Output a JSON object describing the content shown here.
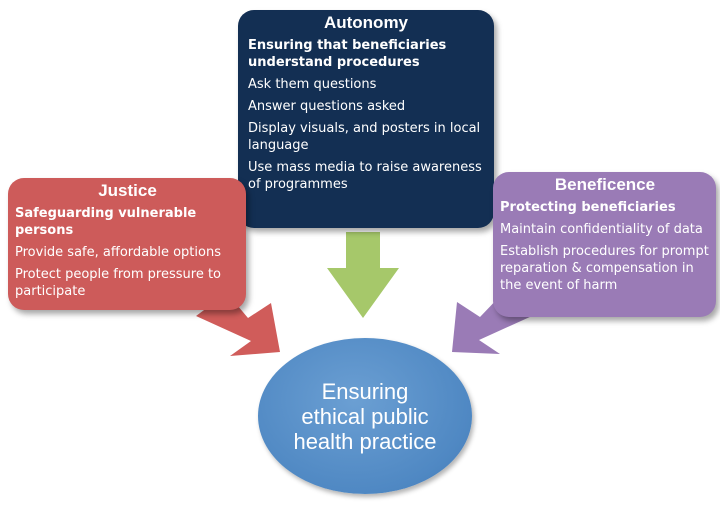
{
  "autonomy": {
    "title": "Autonomy",
    "subtitle": "Ensuring that beneficiaries understand  procedures",
    "items": [
      "Ask them questions",
      "Answer questions asked",
      "Display visuals, and posters in local language",
      "Use mass media to raise awareness of programmes"
    ],
    "color": "#132f53"
  },
  "justice": {
    "title": "Justice",
    "subtitle": "Safeguarding vulnerable persons",
    "items": [
      "Provide safe, affordable options",
      "Protect people from pressure to participate"
    ],
    "color": "#cd5b5a"
  },
  "beneficence": {
    "title": "Beneficence",
    "subtitle": "Protecting beneficiaries",
    "items": [
      "Maintain confidentiality of data",
      "Establish procedures for prompt reparation & compensation in the event of harm"
    ],
    "color": "#9a7bb6"
  },
  "center": {
    "label": "Ensuring\nethical public\nhealth practice",
    "color": "#4f88c3"
  },
  "arrow_colors": {
    "green": "#a6c86a",
    "red": "#cd5b5a",
    "purple": "#9a7bb6"
  }
}
